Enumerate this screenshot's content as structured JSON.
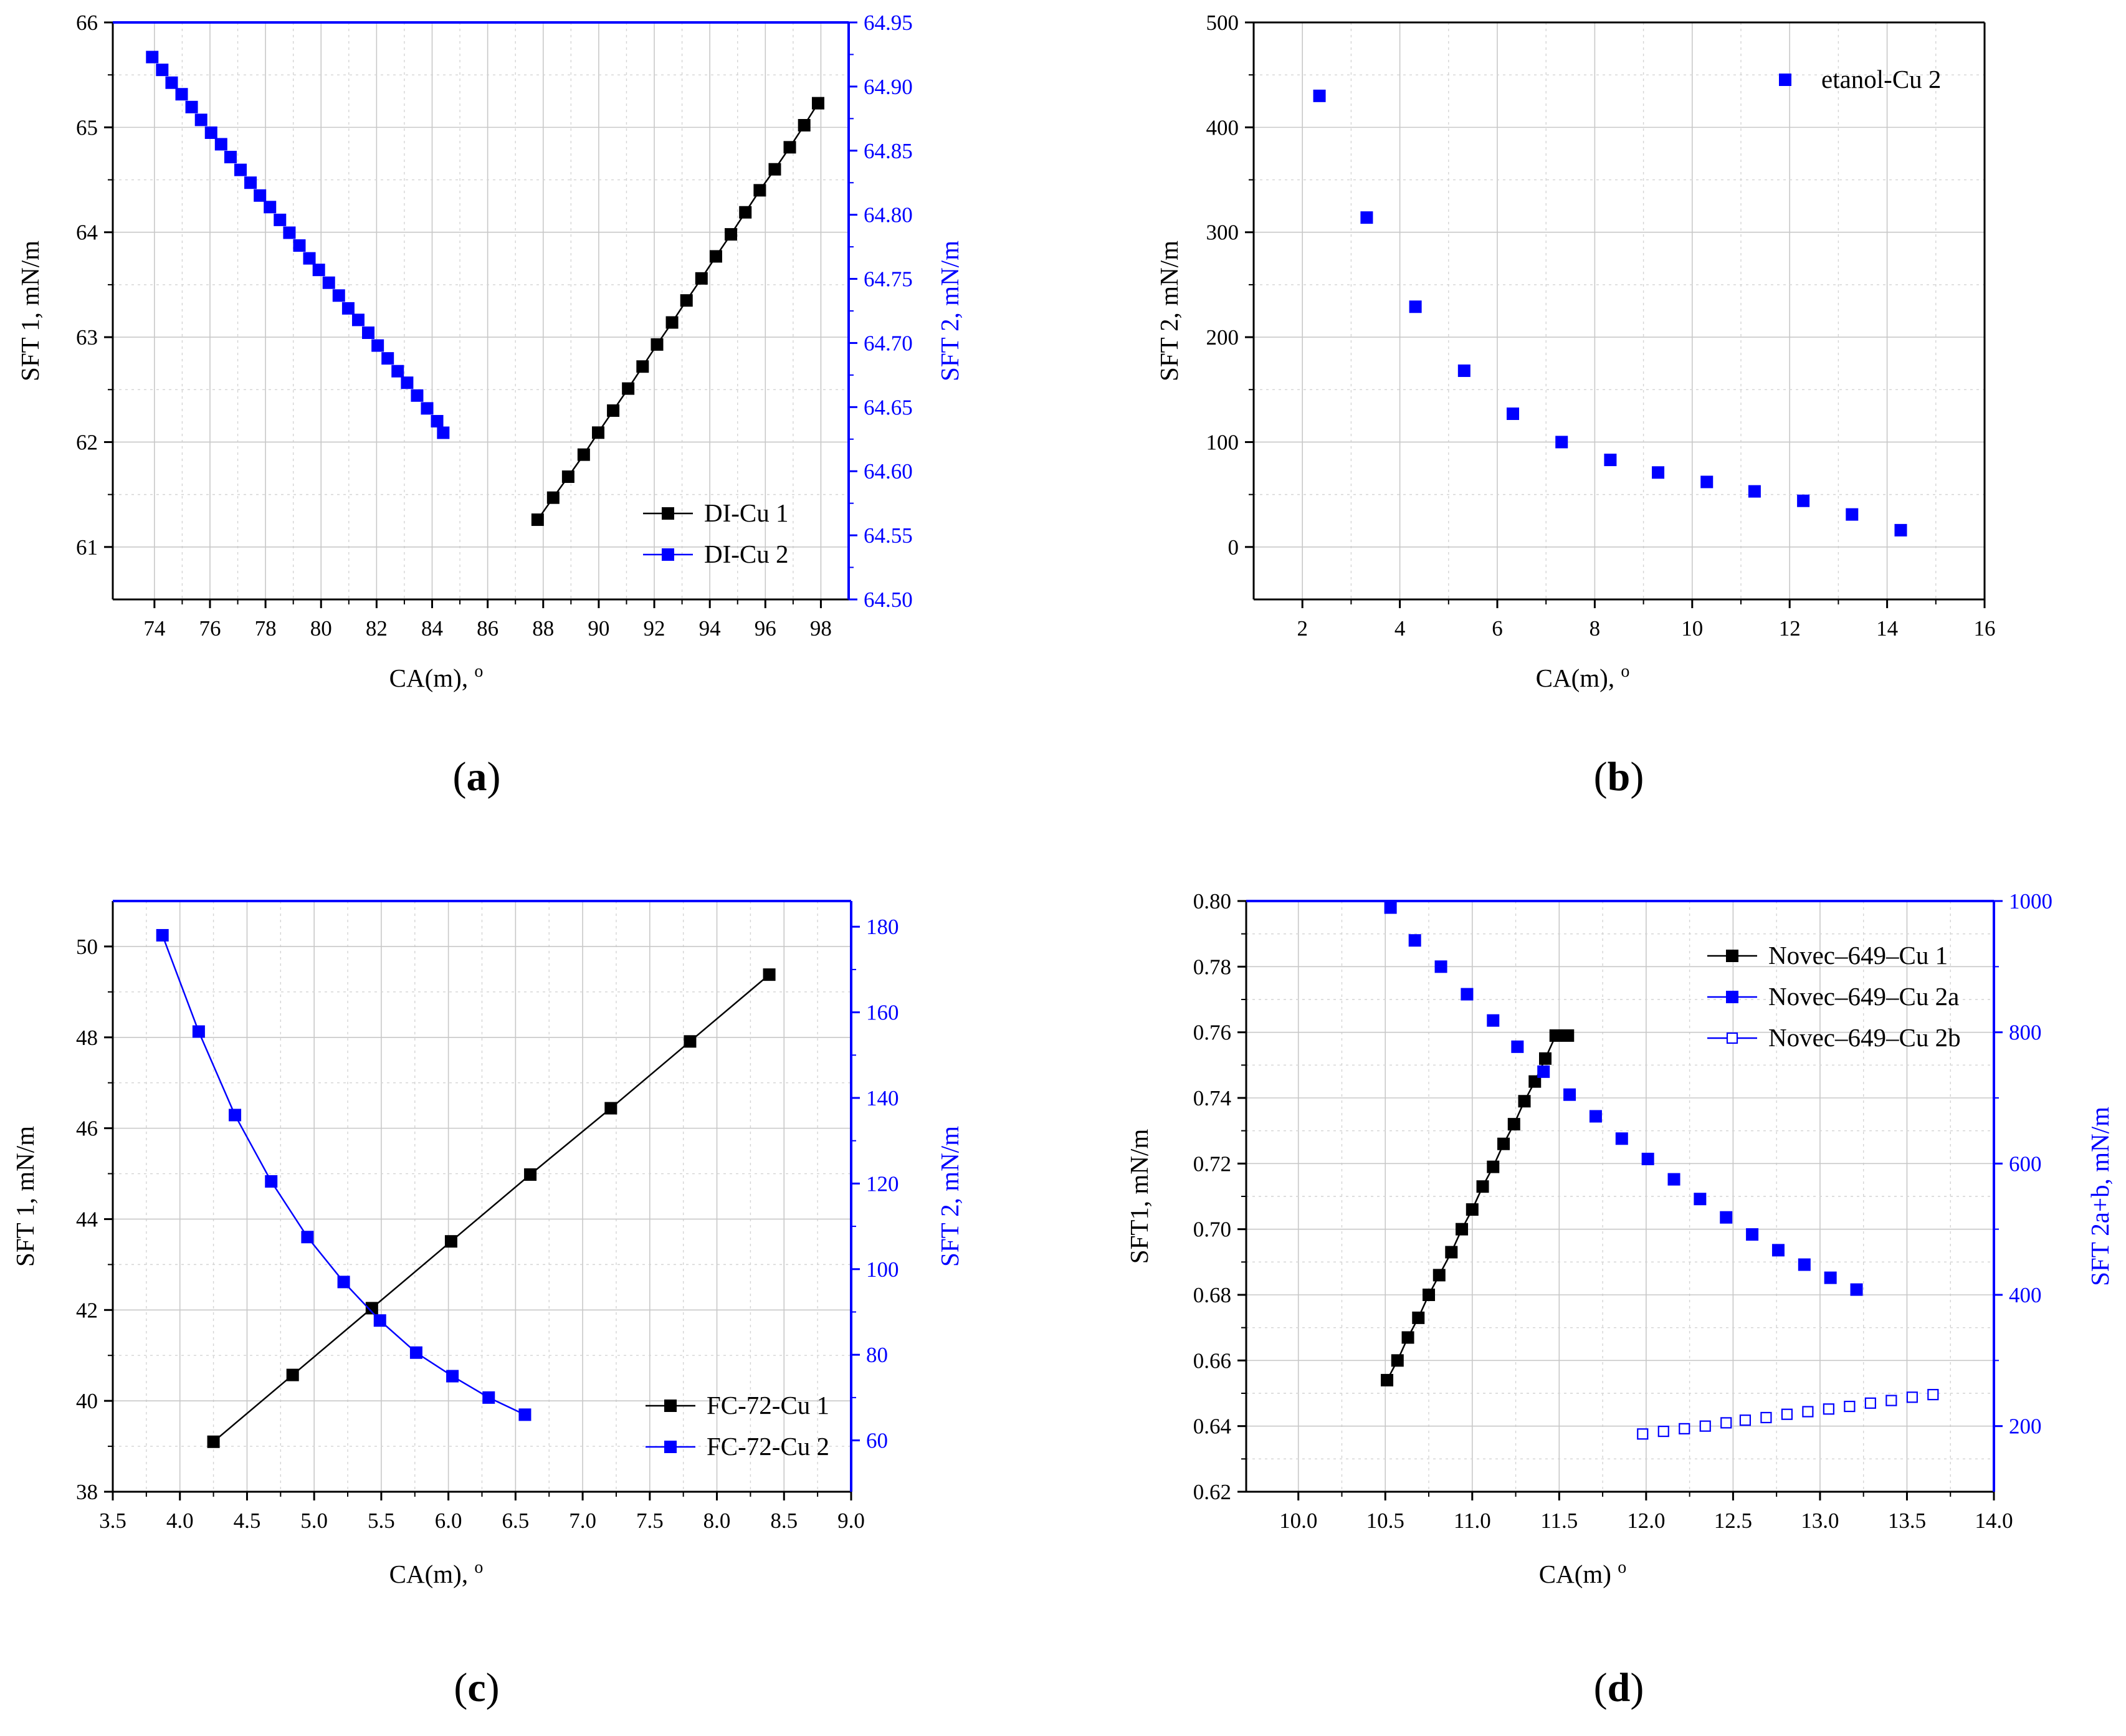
{
  "chart_data": [
    {
      "id": "a",
      "type": "scatter",
      "panel_label": "(a)",
      "xlabel": "CA(m), o",
      "ylabel": "SFT 1, mN/m",
      "y2label": "SFT 2, mN/m",
      "xlim": [
        72.5,
        99.0
      ],
      "ylim": [
        60.5,
        66.0
      ],
      "y2lim": [
        64.5,
        64.95
      ],
      "xticks": [
        74,
        76,
        78,
        80,
        82,
        84,
        86,
        88,
        90,
        92,
        94,
        96,
        98
      ],
      "xtick_labels": [
        "74",
        "76",
        "78",
        "80",
        "82",
        "84",
        "86",
        "88",
        "90",
        "92",
        "94",
        "96",
        "98"
      ],
      "yticks": [
        61,
        62,
        63,
        64,
        65,
        66
      ],
      "ytick_labels": [
        "61",
        "62",
        "63",
        "64",
        "65",
        "66"
      ],
      "y2ticks": [
        64.5,
        64.55,
        64.6,
        64.65,
        64.7,
        64.75,
        64.8,
        64.85,
        64.9,
        64.95
      ],
      "y2tick_labels": [
        "64.50",
        "64.55",
        "64.60",
        "64.65",
        "64.70",
        "64.75",
        "64.80",
        "64.85",
        "64.90",
        "64.95"
      ],
      "grid": true,
      "legend_position": "bottom-right",
      "series": [
        {
          "name": "DI-Cu 1",
          "axis": "left",
          "color": "#000000",
          "marker": "square-filled",
          "line": true,
          "x": [
            87.8,
            88.36,
            88.9,
            89.46,
            89.98,
            90.52,
            91.06,
            91.58,
            92.1,
            92.64,
            93.16,
            93.7,
            94.22,
            94.76,
            95.28,
            95.8,
            96.34,
            96.88,
            97.4,
            97.9
          ],
          "y": [
            61.26,
            61.47,
            61.67,
            61.88,
            62.09,
            62.3,
            62.51,
            62.72,
            62.93,
            63.14,
            63.35,
            63.56,
            63.77,
            63.98,
            64.19,
            64.4,
            64.6,
            64.81,
            65.02,
            65.23
          ]
        },
        {
          "name": "DI-Cu 2",
          "axis": "right",
          "color": "#0000ff",
          "marker": "square-filled",
          "line": false,
          "x": [
            73.92,
            74.28,
            74.62,
            74.98,
            75.34,
            75.68,
            76.04,
            76.4,
            76.74,
            77.1,
            77.46,
            77.8,
            78.16,
            78.52,
            78.86,
            79.22,
            79.58,
            79.92,
            80.28,
            80.64,
            80.98,
            81.34,
            81.7,
            82.04,
            82.4,
            82.76,
            83.1,
            83.46,
            83.82,
            84.18,
            84.4
          ],
          "y": [
            64.923,
            64.913,
            64.903,
            64.894,
            64.884,
            64.874,
            64.864,
            64.855,
            64.845,
            64.835,
            64.825,
            64.815,
            64.806,
            64.796,
            64.786,
            64.776,
            64.766,
            64.757,
            64.747,
            64.737,
            64.727,
            64.718,
            64.708,
            64.698,
            64.688,
            64.678,
            64.669,
            64.659,
            64.649,
            64.639,
            64.63
          ]
        }
      ]
    },
    {
      "id": "b",
      "type": "scatter",
      "panel_label": "(b)",
      "xlabel": "CA(m), o",
      "ylabel": "SFT 2, mN/m",
      "xlim": [
        1.0,
        16.0
      ],
      "ylim": [
        -50,
        500
      ],
      "xticks": [
        2,
        4,
        6,
        8,
        10,
        12,
        14,
        16
      ],
      "xtick_labels": [
        "2",
        "4",
        "6",
        "8",
        "10",
        "12",
        "14",
        "16"
      ],
      "yticks": [
        0,
        100,
        200,
        300,
        400,
        500
      ],
      "ytick_labels": [
        "0",
        "100",
        "200",
        "300",
        "400",
        "500"
      ],
      "grid": true,
      "legend_position": "top-right",
      "series": [
        {
          "name": "etanol-Cu 2",
          "axis": "left",
          "color": "#0000ff",
          "marker": "square-filled",
          "line": false,
          "x": [
            2.35,
            3.32,
            4.32,
            5.32,
            6.32,
            7.32,
            8.32,
            9.3,
            10.3,
            11.28,
            12.28,
            13.28,
            14.28
          ],
          "y": [
            430,
            314,
            229,
            168,
            127,
            100,
            83,
            71,
            62,
            53,
            44,
            31,
            16
          ]
        }
      ]
    },
    {
      "id": "c",
      "type": "line",
      "panel_label": "(c)",
      "xlabel": "CA(m), o",
      "ylabel": "SFT 1, mN/m",
      "y2label": "SFT 2, mN/m",
      "xlim": [
        3.5,
        9.0
      ],
      "ylim": [
        38,
        51
      ],
      "y2lim": [
        48,
        186
      ],
      "xticks": [
        3.5,
        4.0,
        4.5,
        5.0,
        5.5,
        6.0,
        6.5,
        7.0,
        7.5,
        8.0,
        8.5,
        9.0
      ],
      "xtick_labels": [
        "3.5",
        "4.0",
        "4.5",
        "5.0",
        "5.5",
        "6.0",
        "6.5",
        "7.0",
        "7.5",
        "8.0",
        "8.5",
        "9.0"
      ],
      "yticks": [
        38,
        40,
        42,
        44,
        46,
        48,
        50
      ],
      "ytick_labels": [
        "38",
        "40",
        "42",
        "44",
        "46",
        "48",
        "50"
      ],
      "y2ticks": [
        60,
        80,
        100,
        120,
        140,
        160,
        180
      ],
      "y2tick_labels": [
        "60",
        "80",
        "100",
        "120",
        "140",
        "160",
        "180"
      ],
      "grid": true,
      "legend_position": "bottom-right",
      "series": [
        {
          "name": "FC-72-Cu 1",
          "axis": "left",
          "color": "#000000",
          "marker": "square-filled",
          "line": true,
          "x": [
            4.25,
            4.84,
            5.43,
            6.02,
            6.61,
            7.21,
            7.8,
            8.39
          ],
          "y": [
            39.1,
            40.57,
            42.04,
            43.51,
            44.98,
            46.44,
            47.91,
            49.38
          ]
        },
        {
          "name": "FC-72-Cu 2",
          "axis": "right",
          "color": "#0000ff",
          "marker": "square-filled",
          "line": true,
          "x": [
            3.87,
            4.14,
            4.41,
            4.68,
            4.95,
            5.22,
            5.49,
            5.76,
            6.03,
            6.3,
            6.57
          ],
          "y": [
            178.0,
            155.5,
            136.0,
            120.5,
            107.5,
            97.0,
            88.0,
            80.5,
            75.0,
            70.0,
            66.0
          ]
        }
      ]
    },
    {
      "id": "d",
      "type": "scatter",
      "panel_label": "(d)",
      "xlabel": "CA(m) o",
      "ylabel": "SFT1, mN/m",
      "y2label": "SFT 2a+b, mN/m",
      "xlim": [
        9.7,
        14.0
      ],
      "ylim": [
        0.62,
        0.8
      ],
      "y2lim": [
        100,
        1000
      ],
      "xticks": [
        10.0,
        10.5,
        11.0,
        11.5,
        12.0,
        12.5,
        13.0,
        13.5,
        14.0
      ],
      "xtick_labels": [
        "10.0",
        "10.5",
        "11.0",
        "11.5",
        "12.0",
        "12.5",
        "13.0",
        "13.5",
        "14.0"
      ],
      "yticks": [
        0.62,
        0.64,
        0.66,
        0.68,
        0.7,
        0.72,
        0.74,
        0.76,
        0.78,
        0.8
      ],
      "ytick_labels": [
        "0.62",
        "0.64",
        "0.66",
        "0.68",
        "0.70",
        "0.72",
        "0.74",
        "0.76",
        "0.78",
        "0.80"
      ],
      "y2ticks": [
        200,
        400,
        600,
        800,
        1000
      ],
      "y2tick_labels": [
        "200",
        "400",
        "600",
        "800",
        "1000"
      ],
      "grid": true,
      "legend_position": "top-right",
      "series": [
        {
          "name": "Novec–649–Cu 1",
          "axis": "left",
          "color": "#000000",
          "marker": "square-filled",
          "line": true,
          "x": [
            10.51,
            10.57,
            10.63,
            10.69,
            10.75,
            10.81,
            10.88,
            10.94,
            11.0,
            11.06,
            11.12,
            11.18,
            11.24,
            11.3,
            11.36,
            11.42,
            11.48,
            11.55
          ],
          "y": [
            0.654,
            0.66,
            0.667,
            0.673,
            0.68,
            0.686,
            0.693,
            0.7,
            0.706,
            0.713,
            0.719,
            0.726,
            0.732,
            0.739,
            0.745,
            0.752,
            0.759,
            0.759
          ]
        },
        {
          "name": "Novec–649–Cu 2a",
          "axis": "right",
          "color": "#0000ff",
          "marker": "square-filled",
          "line": false,
          "x": [
            10.53,
            10.67,
            10.82,
            10.97,
            11.12,
            11.26,
            11.41,
            11.56,
            11.71,
            11.86,
            12.01,
            12.16,
            12.31,
            12.46,
            12.61,
            12.76,
            12.91,
            13.06,
            13.21
          ],
          "y": [
            990,
            940,
            900,
            858,
            818,
            778,
            740,
            705,
            672,
            638,
            607,
            576,
            546,
            518,
            492,
            468,
            446,
            426,
            408
          ]
        },
        {
          "name": "Novec–649–Cu 2b",
          "axis": "right",
          "color": "#0000ff",
          "marker": "square-open",
          "line": false,
          "x": [
            11.98,
            12.1,
            12.22,
            12.34,
            12.46,
            12.57,
            12.69,
            12.81,
            12.93,
            13.05,
            13.17,
            13.29,
            13.41,
            13.53,
            13.65
          ],
          "y": [
            188,
            192,
            196,
            200,
            205,
            209,
            213,
            218,
            222,
            226,
            230,
            235,
            239,
            244,
            248
          ]
        }
      ]
    }
  ]
}
